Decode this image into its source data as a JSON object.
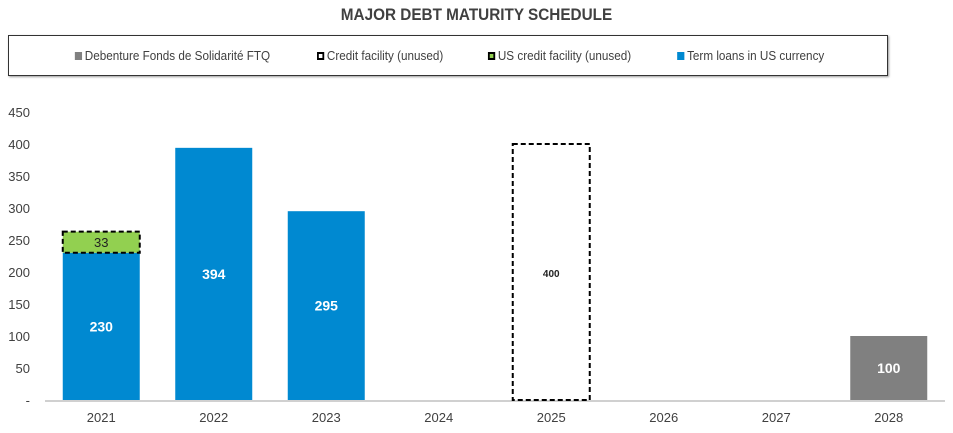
{
  "chart_data": {
    "type": "bar",
    "stacked": true,
    "title": "MAJOR DEBT MATURITY SCHEDULE",
    "categories": [
      "2021",
      "2022",
      "2023",
      "2024",
      "2025",
      "2026",
      "2027",
      "2028"
    ],
    "series": [
      {
        "name": "Debenture Fonds de Solidarité FTQ",
        "color": "#808080",
        "values": [
          0,
          0,
          0,
          0,
          0,
          0,
          0,
          100
        ],
        "labels": [
          "",
          "",
          "",
          "",
          "",
          "",
          "",
          "100"
        ]
      },
      {
        "name": "Credit facility (unused)",
        "color": "#ffffff",
        "dashed": true,
        "values": [
          0,
          0,
          0,
          0,
          400,
          0,
          0,
          0
        ],
        "labels": [
          "",
          "",
          "",
          "",
          "400",
          "",
          "",
          ""
        ]
      },
      {
        "name": "US credit facility (unused)",
        "color": "#92d050",
        "dashed": true,
        "values": [
          33,
          0,
          0,
          0,
          0,
          0,
          0,
          0
        ],
        "labels": [
          "33",
          "",
          "",
          "",
          "",
          "",
          "",
          ""
        ]
      },
      {
        "name": "Term loans in US currency",
        "color": "#0089d1",
        "values": [
          230,
          394,
          295,
          0,
          0,
          0,
          0,
          0
        ],
        "labels": [
          "230",
          "394",
          "295",
          "",
          "",
          "",
          "",
          ""
        ]
      }
    ],
    "ylim": [
      0,
      450
    ],
    "yticks": [
      0,
      50,
      100,
      150,
      200,
      250,
      300,
      350,
      400,
      450
    ],
    "ytick_labels": [
      "-",
      "50",
      "100",
      "150",
      "200",
      "250",
      "300",
      "350",
      "400",
      "450"
    ],
    "legend": "top",
    "grid": false
  }
}
